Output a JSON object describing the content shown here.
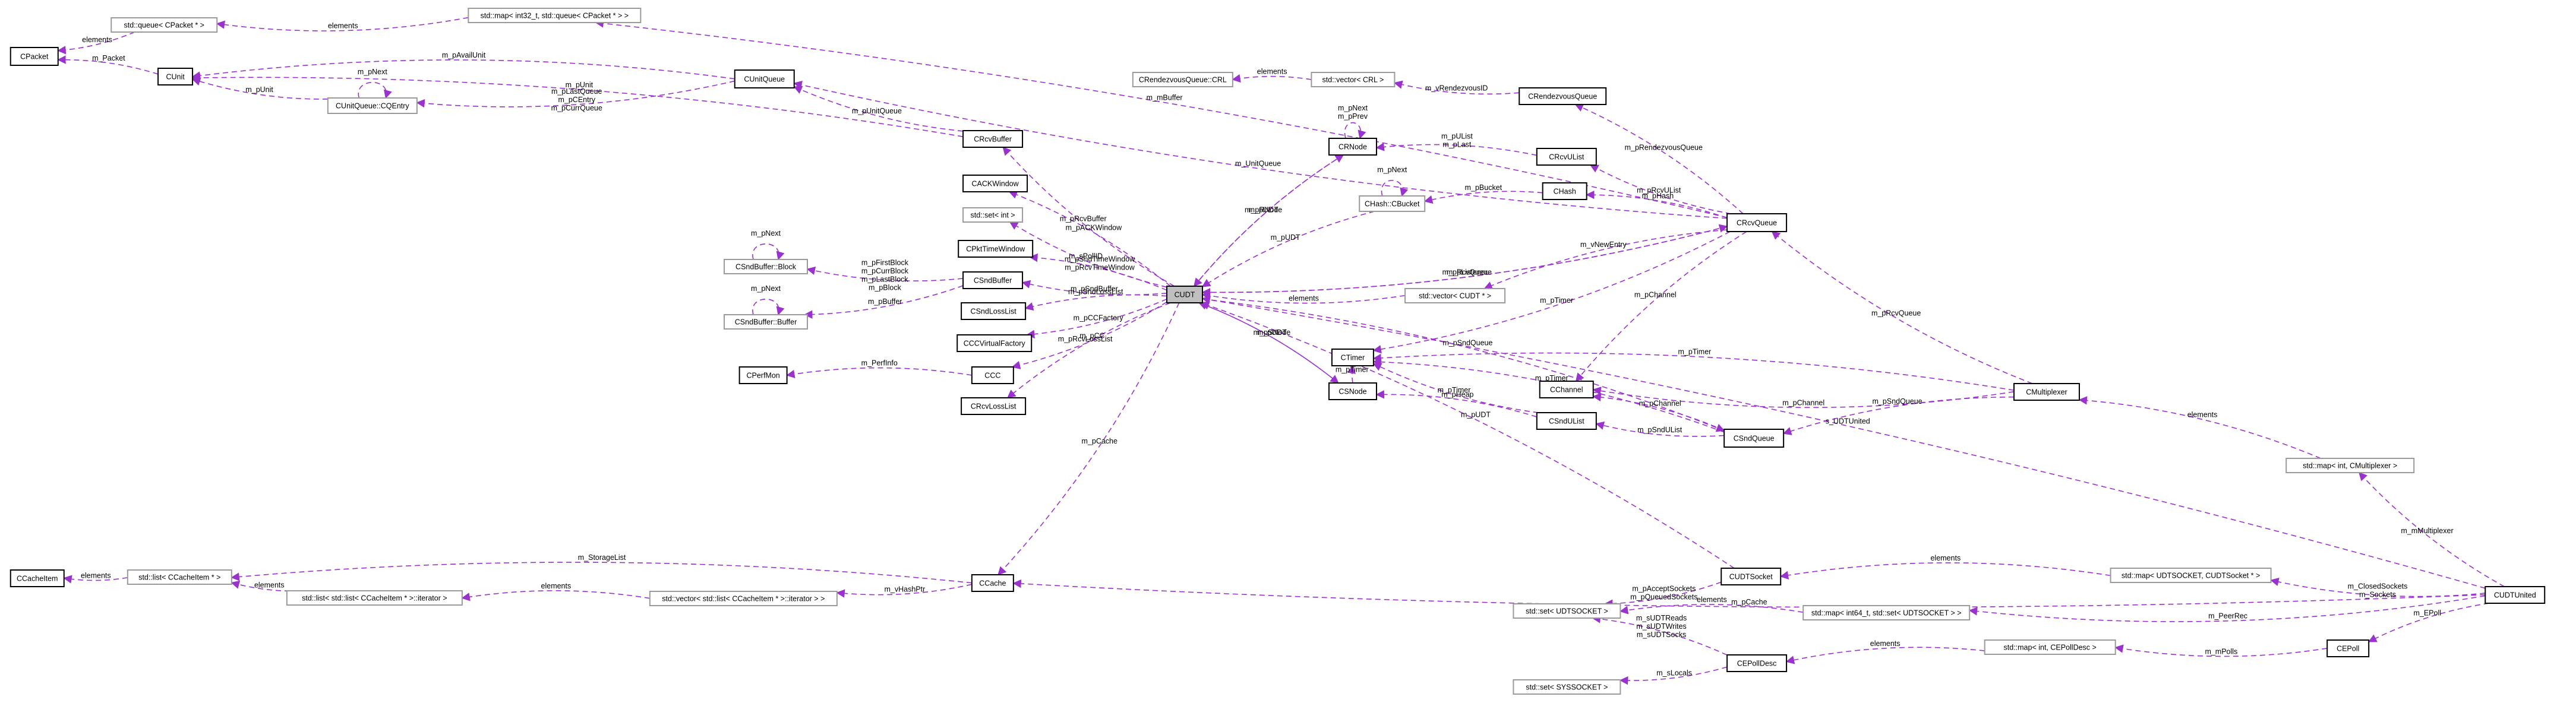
{
  "diagram": {
    "nodes": {
      "CPacket": "CPacket",
      "queueCPacket": "std::queue< CPacket * >",
      "mapQueue": "std::map< int32_t, std::queue< CPacket * > >",
      "CUnit": "CUnit",
      "CUnitQueue": "CUnitQueue",
      "CQEntry": "CUnitQueue::CQEntry",
      "CRendezvousQueueCRL": "CRendezvousQueue::CRL",
      "vectorCRL": "std::vector< CRL >",
      "CRendezvousQueue": "CRendezvousQueue",
      "CRcvBuffer": "CRcvBuffer",
      "CACKWindow": "CACKWindow",
      "setInt": "std::set< int >",
      "CPktTimeWindow": "CPktTimeWindow",
      "CSndBufferBlock": "CSndBuffer::Block",
      "CSndBuffer": "CSndBuffer",
      "CSndLossList": "CSndLossList",
      "CSndBufferBuffer": "CSndBuffer::Buffer",
      "CCCVirtualFactory": "CCCVirtualFactory",
      "CPerfMon": "CPerfMon",
      "CCC": "CCC",
      "CRcvLossList": "CRcvLossList",
      "CUDT": "CUDT",
      "CRNode": "CRNode",
      "CRcvUList": "CRcvUList",
      "CHashCBucket": "CHash::CBucket",
      "CHash": "CHash",
      "CRcvQueue": "CRcvQueue",
      "vectorCUDT": "std::vector< CUDT * >",
      "CTimer": "CTimer",
      "CChannel": "CChannel",
      "CMultiplexer": "CMultiplexer",
      "CSNode": "CSNode",
      "CSndUList": "CSndUList",
      "CSndQueue": "CSndQueue",
      "mapMultiplexer": "std::map< int, CMultiplexer >",
      "CCacheItem": "CCacheItem",
      "listCCacheItem": "std::list< CCacheItem * >",
      "CCache": "CCache",
      "listIterator": "std::list< std::list< CCacheItem * >::iterator >",
      "vectorListIterator": "std::vector< std::list< CCacheItem * >::iterator > >",
      "CUDTSocket": "CUDTSocket",
      "mapUDTSocket": "std::map< UDTSOCKET, CUDTSocket * >",
      "CUDTUnited": "CUDTUnited",
      "setUDTSOCKET": "std::set< UDTSOCKET >",
      "mapPeerRec": "std::map< int64_t, std::set< UDTSOCKET > >",
      "CEPollDesc": "CEPollDesc",
      "mapEPollDesc": "std::map< int, CEPollDesc >",
      "CEPoll": "CEPoll",
      "setSYSSOCKET": "std::set< SYSSOCKET >"
    },
    "edges": [
      {
        "from": "queueCPacket",
        "to": "CPacket",
        "label": [
          "elements"
        ]
      },
      {
        "from": "CUnit",
        "to": "CPacket",
        "label": [
          "m_Packet"
        ]
      },
      {
        "from": "mapQueue",
        "to": "queueCPacket",
        "label": [
          "elements"
        ]
      },
      {
        "from": "CUnitQueue",
        "to": "CUnit",
        "label": [
          "m_pAvailUnit"
        ]
      },
      {
        "from": "CQEntry",
        "to": "CUnit",
        "label": [
          "m_pUnit"
        ]
      },
      {
        "from": "CQEntry",
        "to": "CQEntry",
        "label": [
          "m_pNext"
        ]
      },
      {
        "from": "CUnitQueue",
        "to": "CQEntry",
        "label": [
          "m_pLastQueue",
          "m_pCEntry",
          "m_pCurrQueue"
        ]
      },
      {
        "from": "CRcvBuffer",
        "to": "CUnit",
        "label": [
          "m_pUnit"
        ]
      },
      {
        "from": "CRcvBuffer",
        "to": "CUnitQueue",
        "label": [
          "m_pUnitQueue"
        ]
      },
      {
        "from": "CRcvQueue",
        "to": "mapQueue",
        "label": [
          "m_mBuffer"
        ]
      },
      {
        "from": "CRcvQueue",
        "to": "CUnitQueue",
        "label": [
          "m_UnitQueue"
        ]
      },
      {
        "from": "vectorCRL",
        "to": "CRendezvousQueueCRL",
        "label": [
          "elements"
        ]
      },
      {
        "from": "CRendezvousQueue",
        "to": "vectorCRL",
        "label": [
          "m_vRendezvousID"
        ]
      },
      {
        "from": "CRcvQueue",
        "to": "CRendezvousQueue",
        "label": [
          "m_pRendezvousQueue"
        ]
      },
      {
        "from": "CUDT",
        "to": "CRcvBuffer",
        "label": [
          "m_pRcvBuffer"
        ]
      },
      {
        "from": "CUDT",
        "to": "CACKWindow",
        "label": [
          "m_pACKWindow"
        ]
      },
      {
        "from": "CUDT",
        "to": "setInt",
        "label": [
          "m_sPollID"
        ]
      },
      {
        "from": "CUDT",
        "to": "CPktTimeWindow",
        "label": [
          "m_pSndTimeWindow",
          "m_pRcvTimeWindow"
        ]
      },
      {
        "from": "CSndBuffer",
        "to": "CSndBufferBlock",
        "label": [
          "m_pFirstBlock",
          "m_pCurrBlock",
          "m_pLastBlock",
          "m_pBlock"
        ]
      },
      {
        "from": "CSndBufferBlock",
        "to": "CSndBufferBlock",
        "label": [
          "m_pNext"
        ]
      },
      {
        "from": "CSndBuffer",
        "to": "CSndBufferBuffer",
        "label": [
          "m_pBuffer"
        ]
      },
      {
        "from": "CSndBufferBuffer",
        "to": "CSndBufferBuffer",
        "label": [
          "m_pNext"
        ]
      },
      {
        "from": "CUDT",
        "to": "CSndBuffer",
        "label": [
          "m_pSndBuffer"
        ]
      },
      {
        "from": "CUDT",
        "to": "CSndLossList",
        "label": [
          "m_pSndLossList"
        ]
      },
      {
        "from": "CUDT",
        "to": "CCCVirtualFactory",
        "label": [
          "m_pCCFactory"
        ]
      },
      {
        "from": "CCC",
        "to": "CPerfMon",
        "label": [
          "m_PerfInfo"
        ]
      },
      {
        "from": "CUDT",
        "to": "CCC",
        "label": [
          "m_pCC"
        ]
      },
      {
        "from": "CUDT",
        "to": "CRcvLossList",
        "label": [
          "m_pRcvLossList"
        ]
      },
      {
        "from": "CUDT",
        "to": "CCache",
        "label": [
          "m_pCache"
        ]
      },
      {
        "from": "CRNode",
        "to": "CUDT",
        "label": [
          "m_pUDT"
        ]
      },
      {
        "from": "CRNode",
        "to": "CRNode",
        "label": [
          "m_pNext",
          "m_pPrev"
        ]
      },
      {
        "from": "CRcvUList",
        "to": "CRNode",
        "label": [
          "m_pUList",
          "m_pLast"
        ]
      },
      {
        "from": "CUDT",
        "to": "CRNode",
        "label": [
          "m_pRNode"
        ]
      },
      {
        "from": "CHashCBucket",
        "to": "CUDT",
        "label": [
          "m_pUDT"
        ]
      },
      {
        "from": "CHashCBucket",
        "to": "CHashCBucket",
        "label": [
          "m_pNext"
        ]
      },
      {
        "from": "CHash",
        "to": "CHashCBucket",
        "label": [
          "m_pBucket"
        ]
      },
      {
        "from": "CRcvQueue",
        "to": "CRcvUList",
        "label": [
          "m_pRcvUList"
        ]
      },
      {
        "from": "CRcvQueue",
        "to": "CHash",
        "label": [
          "m_pHash"
        ]
      },
      {
        "from": "CRcvQueue",
        "to": "CUDT",
        "label": [
          "m_pListener"
        ]
      },
      {
        "from": "CUDT",
        "to": "CRcvQueue",
        "label": [
          "m_pRcvQueue"
        ]
      },
      {
        "from": "vectorCUDT",
        "to": "CUDT",
        "label": [
          "elements"
        ]
      },
      {
        "from": "CRcvQueue",
        "to": "vectorCUDT",
        "label": [
          "m_vNewEntry"
        ]
      },
      {
        "from": "CRcvQueue",
        "to": "CTimer",
        "label": [
          "m_pTimer"
        ]
      },
      {
        "from": "CRcvQueue",
        "to": "CChannel",
        "label": [
          "m_pChannel"
        ]
      },
      {
        "from": "CUDT",
        "to": "CSNode",
        "label": [
          "m_pSNode"
        ]
      },
      {
        "from": "CSNode",
        "to": "CUDT",
        "label": [
          "m_pUDT"
        ]
      },
      {
        "from": "CSNode",
        "to": "CTimer",
        "label": [
          "m_pTimer"
        ]
      },
      {
        "from": "CMultiplexer",
        "to": "CTimer",
        "label": [
          "m_pTimer"
        ]
      },
      {
        "from": "CMultiplexer",
        "to": "CChannel",
        "label": [
          "m_pChannel"
        ]
      },
      {
        "from": "CSndUList",
        "to": "CSNode",
        "label": [
          "m_pHeap"
        ]
      },
      {
        "from": "CSndUList",
        "to": "CTimer",
        "label": [
          "m_pTimer"
        ]
      },
      {
        "from": "CSndQueue",
        "to": "CChannel",
        "label": [
          "m_pChannel"
        ]
      },
      {
        "from": "CSndQueue",
        "to": "CSndUList",
        "label": [
          "m_pSndUList"
        ]
      },
      {
        "from": "CSndQueue",
        "to": "CTimer",
        "label": [
          "m_pTimer"
        ]
      },
      {
        "from": "CMultiplexer",
        "to": "CRcvQueue",
        "label": [
          "m_pRcvQueue"
        ]
      },
      {
        "from": "CMultiplexer",
        "to": "CSndQueue",
        "label": [
          "m_pSndQueue"
        ]
      },
      {
        "from": "CUDT",
        "to": "CSndQueue",
        "label": [
          "m_pSndQueue"
        ]
      },
      {
        "from": "mapMultiplexer",
        "to": "CMultiplexer",
        "label": [
          "elements"
        ]
      },
      {
        "from": "CUDTUnited",
        "to": "mapMultiplexer",
        "label": [
          "m_mMultiplexer"
        ]
      },
      {
        "from": "CUDTUnited",
        "to": "CUDT",
        "label": [
          "s_UDTUnited"
        ]
      },
      {
        "from": "listCCacheItem",
        "to": "CCacheItem",
        "label": [
          "elements"
        ]
      },
      {
        "from": "CCache",
        "to": "listCCacheItem",
        "label": [
          "m_StorageList"
        ]
      },
      {
        "from": "listIterator",
        "to": "listCCacheItem",
        "label": [
          "elements"
        ]
      },
      {
        "from": "vectorListIterator",
        "to": "listIterator",
        "label": [
          "elements"
        ]
      },
      {
        "from": "CCache",
        "to": "vectorListIterator",
        "label": [
          "m_vHashPtr"
        ]
      },
      {
        "from": "CUDTSocket",
        "to": "CUDT",
        "label": [
          "m_pUDT"
        ]
      },
      {
        "from": "CUDTSocket",
        "to": "setUDTSOCKET",
        "label": [
          "m_pAcceptSockets",
          "m_pQueuedSockets"
        ]
      },
      {
        "from": "mapUDTSocket",
        "to": "CUDTSocket",
        "label": [
          "elements"
        ]
      },
      {
        "from": "CUDTUnited",
        "to": "mapUDTSocket",
        "label": [
          "m_ClosedSockets",
          "m_Sockets"
        ]
      },
      {
        "from": "mapPeerRec",
        "to": "setUDTSOCKET",
        "label": [
          "elements"
        ]
      },
      {
        "from": "CUDTUnited",
        "to": "mapPeerRec",
        "label": [
          "m_PeerRec"
        ]
      },
      {
        "from": "CEPollDesc",
        "to": "setUDTSOCKET",
        "label": [
          "m_sUDTReads",
          "m_sUDTWrites",
          "m_sUDTSocks"
        ]
      },
      {
        "from": "CEPollDesc",
        "to": "setSYSSOCKET",
        "label": [
          "m_sLocals"
        ]
      },
      {
        "from": "mapEPollDesc",
        "to": "CEPollDesc",
        "label": [
          "elements"
        ]
      },
      {
        "from": "CEPoll",
        "to": "mapEPollDesc",
        "label": [
          "m_mPolls"
        ]
      },
      {
        "from": "CUDTUnited",
        "to": "CEPoll",
        "label": [
          "m_EPoll"
        ]
      },
      {
        "from": "CUDTUnited",
        "to": "CCache",
        "label": [
          "m_pCache"
        ]
      }
    ]
  }
}
